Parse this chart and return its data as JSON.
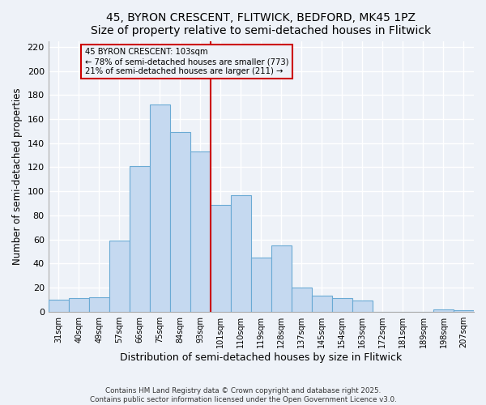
{
  "title": "45, BYRON CRESCENT, FLITWICK, BEDFORD, MK45 1PZ",
  "subtitle": "Size of property relative to semi-detached houses in Flitwick",
  "xlabel": "Distribution of semi-detached houses by size in Flitwick",
  "ylabel": "Number of semi-detached properties",
  "bin_labels": [
    "31sqm",
    "40sqm",
    "49sqm",
    "57sqm",
    "66sqm",
    "75sqm",
    "84sqm",
    "93sqm",
    "101sqm",
    "110sqm",
    "119sqm",
    "128sqm",
    "137sqm",
    "145sqm",
    "154sqm",
    "163sqm",
    "172sqm",
    "181sqm",
    "189sqm",
    "198sqm",
    "207sqm"
  ],
  "bar_heights": [
    10,
    11,
    12,
    59,
    121,
    172,
    149,
    133,
    89,
    97,
    45,
    55,
    20,
    13,
    11,
    9,
    0,
    0,
    0,
    2,
    1
  ],
  "bar_color": "#c5d9f0",
  "bar_edgecolor": "#6aaad4",
  "vline_bin_index": 8,
  "property_sqm": 103,
  "annotation_title": "45 BYRON CRESCENT: 103sqm",
  "annotation_line1": "← 78% of semi-detached houses are smaller (773)",
  "annotation_line2": "21% of semi-detached houses are larger (211) →",
  "annotation_box_edgecolor": "#cc0000",
  "vline_color": "#cc0000",
  "ylim": [
    0,
    225
  ],
  "yticks": [
    0,
    20,
    40,
    60,
    80,
    100,
    120,
    140,
    160,
    180,
    200,
    220
  ],
  "footer_line1": "Contains HM Land Registry data © Crown copyright and database right 2025.",
  "footer_line2": "Contains public sector information licensed under the Open Government Licence v3.0.",
  "background_color": "#eef2f8"
}
